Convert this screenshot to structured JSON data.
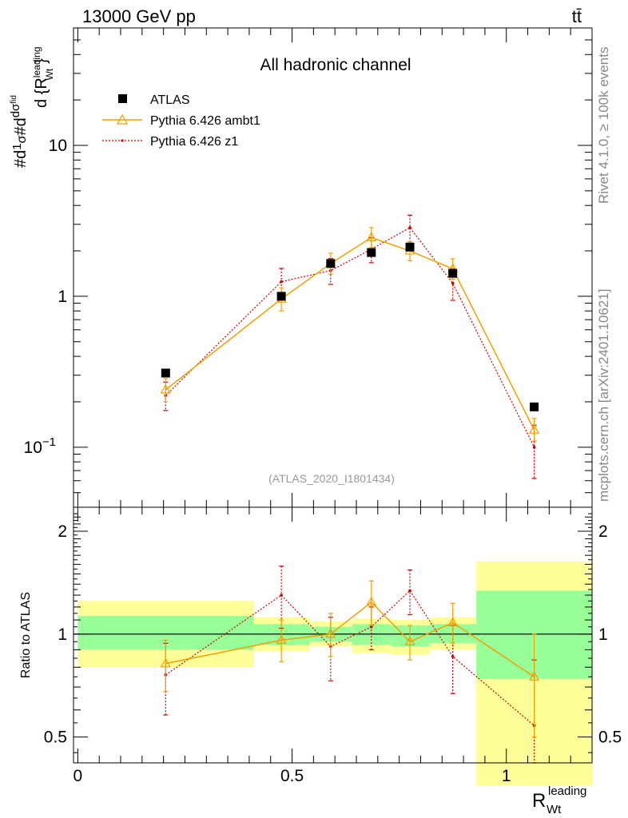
{
  "header": {
    "left_title": "13000 GeV pp",
    "right_title": "tt̄",
    "plot_title": "All hadronic channel",
    "watermark": "(ATLAS_2020_I1801434)",
    "side_rivet": "Rivet 4.1.0, ≥ 100k events",
    "side_source": "mcplots.cern.ch [arXiv:2401.10621]"
  },
  "chart_data": {
    "type": "line",
    "main": {
      "ylabel_parts": [
        "#d",
        "1",
        "σ",
        "#d",
        "dσ",
        "fid",
        "d {R",
        "leading",
        "Wt",
        "}"
      ],
      "yscale": "log",
      "ylim": [
        0.04,
        60
      ],
      "ytick_labels": [
        {
          "value": 10,
          "label": "10"
        },
        {
          "value": 1,
          "label": "1"
        },
        {
          "value": 0.1,
          "label": "10",
          "exp": "−1"
        }
      ],
      "x_points": [
        0.205,
        0.475,
        0.59,
        0.685,
        0.775,
        0.875,
        1.065
      ],
      "series": [
        {
          "name": "ATLAS",
          "marker": "square",
          "color": "#000000",
          "values": [
            0.31,
            1.0,
            1.65,
            1.95,
            2.12,
            1.42,
            0.185
          ]
        },
        {
          "name": "Pythia 6.426 ambt1",
          "marker": "triangle",
          "color": "#f0a000",
          "values": [
            0.24,
            0.96,
            1.65,
            2.45,
            2.0,
            1.52,
            0.13
          ],
          "err_lo": [
            0.04,
            0.16,
            0.25,
            0.35,
            0.28,
            0.22,
            0.02
          ],
          "err_hi": [
            0.045,
            0.18,
            0.28,
            0.4,
            0.3,
            0.25,
            0.025
          ]
        },
        {
          "name": "Pythia 6.426 z1",
          "marker": "dot",
          "color": "#cc0000",
          "values": [
            0.22,
            1.25,
            1.48,
            2.05,
            2.85,
            1.22,
            0.1
          ],
          "err_lo": [
            0.045,
            0.25,
            0.28,
            0.38,
            0.55,
            0.28,
            0.038
          ],
          "err_hi": [
            0.05,
            0.28,
            0.3,
            0.4,
            0.6,
            0.3,
            0.04
          ]
        }
      ]
    },
    "ratio": {
      "ylabel": "Ratio to ATLAS",
      "ylim": [
        0.42,
        2.35
      ],
      "ytick_labels": [
        {
          "value": 2,
          "label": "2"
        },
        {
          "value": 1,
          "label": "1"
        },
        {
          "value": 0.5,
          "label": "0.5"
        }
      ],
      "bands": [
        {
          "x0": 0.0,
          "x1": 0.41,
          "y_lo": 0.8,
          "y_hi": 1.25,
          "g_lo": 0.9,
          "g_hi": 1.13
        },
        {
          "x0": 0.41,
          "x1": 0.54,
          "y_lo": 0.89,
          "y_hi": 1.12,
          "g_lo": 0.93,
          "g_hi": 1.07
        },
        {
          "x0": 0.54,
          "x1": 0.64,
          "y_lo": 0.92,
          "y_hi": 1.09,
          "g_lo": 0.95,
          "g_hi": 1.05
        },
        {
          "x0": 0.64,
          "x1": 0.73,
          "y_lo": 0.88,
          "y_hi": 1.11,
          "g_lo": 0.93,
          "g_hi": 1.07
        },
        {
          "x0": 0.73,
          "x1": 0.82,
          "y_lo": 0.87,
          "y_hi": 1.1,
          "g_lo": 0.92,
          "g_hi": 1.06
        },
        {
          "x0": 0.82,
          "x1": 0.93,
          "y_lo": 0.9,
          "y_hi": 1.12,
          "g_lo": 0.94,
          "g_hi": 1.07
        },
        {
          "x0": 0.93,
          "x1": 1.2,
          "y_lo": 0.36,
          "y_hi": 1.63,
          "g_lo": 0.74,
          "g_hi": 1.34
        }
      ],
      "series": [
        {
          "name": "Pythia 6.426 ambt1",
          "color": "#f0a000",
          "values": [
            0.82,
            0.96,
            1.0,
            1.24,
            0.95,
            1.08,
            0.75
          ],
          "err_lo": [
            0.14,
            0.13,
            0.14,
            0.18,
            0.11,
            0.14,
            0.25
          ],
          "err_hi": [
            0.14,
            0.14,
            0.15,
            0.19,
            0.11,
            0.15,
            0.25
          ]
        },
        {
          "name": "Pythia 6.426 z1",
          "color": "#cc0000",
          "values": [
            0.76,
            1.3,
            0.92,
            1.05,
            1.34,
            0.86,
            0.54
          ],
          "err_lo": [
            0.18,
            0.26,
            0.19,
            0.15,
            0.2,
            0.19,
            0.22
          ],
          "err_hi": [
            0.18,
            0.28,
            0.2,
            0.15,
            0.2,
            0.2,
            0.3
          ]
        }
      ]
    },
    "xaxis": {
      "xlim": [
        -0.01,
        1.2
      ],
      "tick_labels": [
        {
          "value": 0,
          "label": "0"
        },
        {
          "value": 0.5,
          "label": "0.5"
        },
        {
          "value": 1,
          "label": "1"
        }
      ],
      "label_main": "R",
      "label_sup": "leading",
      "label_sub": "Wt"
    }
  }
}
